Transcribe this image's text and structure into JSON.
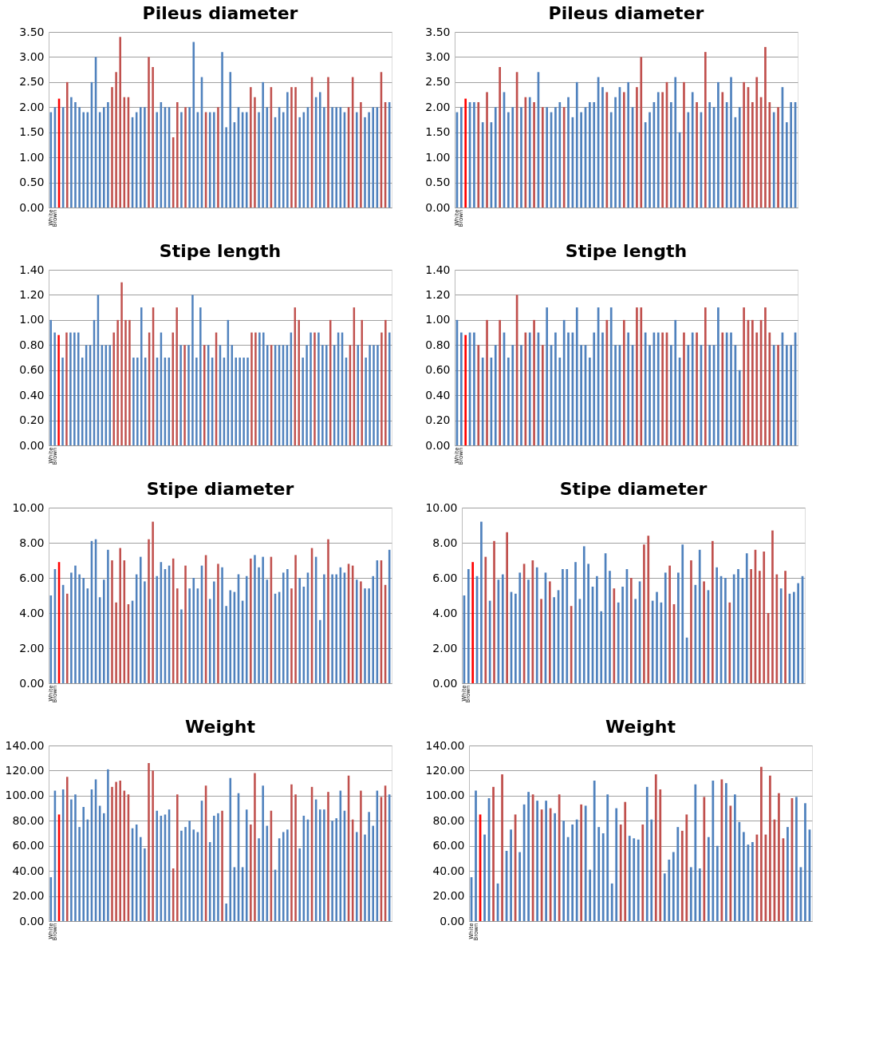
{
  "chart_data": [
    {
      "type": "bar",
      "title": "Pileus diameter",
      "grid": "y",
      "ylim": [
        0,
        3.5
      ],
      "yticks": [
        {
          "value": 0,
          "label": "0.00"
        },
        {
          "value": 0.5,
          "label": "0.50"
        },
        {
          "value": 1,
          "label": "1.00"
        },
        {
          "value": 1.5,
          "label": "1.50"
        },
        {
          "value": 2,
          "label": "2.00"
        },
        {
          "value": 2.5,
          "label": "2.50"
        },
        {
          "value": 3,
          "label": "3.00"
        },
        {
          "value": 3.5,
          "label": "3.50"
        }
      ],
      "categories": [
        "White",
        "Brown",
        null,
        null,
        null,
        null,
        null,
        null,
        null,
        null,
        null,
        null,
        null,
        null,
        null,
        null,
        null,
        null,
        null,
        null,
        null,
        null,
        null,
        null,
        null,
        null,
        null,
        null,
        null,
        null,
        null,
        null,
        null,
        null,
        null,
        null,
        null,
        null,
        null,
        null,
        null,
        null,
        null,
        null,
        null,
        null,
        null,
        null,
        null,
        null,
        null,
        null,
        null,
        null,
        null,
        null,
        null,
        null,
        null,
        null,
        null,
        null,
        null,
        null,
        null,
        null,
        null,
        null,
        null,
        null,
        null,
        null,
        null,
        null,
        null,
        null,
        null,
        null,
        null,
        null,
        null,
        null,
        null,
        null
      ],
      "values": [
        1.9,
        2.0,
        2.17,
        2.0,
        2.5,
        2.2,
        2.1,
        2.0,
        1.9,
        1.9,
        2.5,
        3.0,
        1.9,
        2.0,
        2.1,
        2.4,
        2.7,
        3.4,
        2.2,
        2.2,
        1.8,
        1.9,
        2.0,
        2.0,
        3.0,
        2.8,
        1.9,
        2.1,
        2.0,
        2.0,
        1.4,
        2.1,
        1.9,
        2.0,
        2.0,
        3.3,
        1.9,
        2.6,
        1.9,
        1.9,
        1.9,
        2.0,
        3.1,
        1.6,
        2.7,
        1.7,
        2.0,
        1.9,
        1.9,
        2.4,
        2.2,
        1.9,
        2.5,
        2.0,
        2.4,
        1.8,
        2.0,
        1.9,
        2.3,
        2.4,
        2.4,
        1.8,
        1.9,
        2.0,
        2.6,
        2.2,
        2.3,
        2.0,
        2.6,
        2.0,
        2.0,
        2.0,
        1.9,
        2.0,
        2.6,
        1.9,
        2.1,
        1.8,
        1.9,
        2.0,
        2.0,
        2.7,
        2.1,
        2.1
      ],
      "colors": [
        "#4f81bd",
        "#4f81bd",
        "#ff0000",
        "#4f81bd",
        "#c0504d",
        "#4f81bd",
        "#4f81bd",
        "#4f81bd",
        "#4f81bd",
        "#4f81bd",
        "#4f81bd",
        "#4f81bd",
        "#4f81bd",
        "#4f81bd",
        "#4f81bd",
        "#c0504d",
        "#c0504d",
        "#c0504d",
        "#c0504d",
        "#c0504d",
        "#4f81bd",
        "#4f81bd",
        "#4f81bd",
        "#4f81bd",
        "#c0504d",
        "#c0504d",
        "#4f81bd",
        "#4f81bd",
        "#4f81bd",
        "#4f81bd",
        "#c0504d",
        "#c0504d",
        "#4f81bd",
        "#c0504d",
        "#4f81bd",
        "#4f81bd",
        "#4f81bd",
        "#4f81bd",
        "#c0504d",
        "#4f81bd",
        "#4f81bd",
        "#c0504d",
        "#4f81bd",
        "#4f81bd",
        "#4f81bd",
        "#4f81bd",
        "#4f81bd",
        "#4f81bd",
        "#4f81bd",
        "#c0504d",
        "#c0504d",
        "#4f81bd",
        "#4f81bd",
        "#4f81bd",
        "#c0504d",
        "#4f81bd",
        "#4f81bd",
        "#4f81bd",
        "#4f81bd",
        "#c0504d",
        "#c0504d",
        "#4f81bd",
        "#4f81bd",
        "#4f81bd",
        "#c0504d",
        "#4f81bd",
        "#4f81bd",
        "#4f81bd",
        "#c0504d",
        "#4f81bd",
        "#4f81bd",
        "#4f81bd",
        "#4f81bd",
        "#c0504d",
        "#c0504d",
        "#4f81bd",
        "#c0504d",
        "#4f81bd",
        "#4f81bd",
        "#4f81bd",
        "#4f81bd",
        "#c0504d",
        "#c0504d",
        "#4f81bd"
      ]
    },
    {
      "type": "bar",
      "title": "Pileus diameter",
      "grid": "y",
      "ylim": [
        0,
        3.5
      ],
      "yticks": [
        {
          "value": 0,
          "label": "0.00"
        },
        {
          "value": 0.5,
          "label": "0.50"
        },
        {
          "value": 1,
          "label": "1.00"
        },
        {
          "value": 1.5,
          "label": "1.50"
        },
        {
          "value": 2,
          "label": "2.00"
        },
        {
          "value": 2.5,
          "label": "2.50"
        },
        {
          "value": 3,
          "label": "3.00"
        },
        {
          "value": 3.5,
          "label": "3.50"
        }
      ],
      "categories": [
        "White",
        "Brown",
        null,
        null,
        null,
        null,
        null,
        null,
        null,
        null,
        null,
        null,
        null,
        null,
        null,
        null,
        null,
        null,
        null,
        null,
        null,
        null,
        null,
        null,
        null,
        null,
        null,
        null,
        null,
        null,
        null,
        null,
        null,
        null,
        null,
        null,
        null,
        null,
        null,
        null,
        null,
        null,
        null,
        null,
        null,
        null,
        null,
        null,
        null,
        null,
        null,
        null,
        null,
        null,
        null,
        null,
        null,
        null,
        null,
        null,
        null,
        null,
        null,
        null,
        null,
        null,
        null,
        null,
        null,
        null,
        null,
        null,
        null,
        null,
        null,
        null,
        null,
        null,
        null,
        null
      ],
      "values": [
        1.9,
        2.0,
        2.17,
        2.1,
        2.1,
        2.1,
        1.7,
        2.3,
        1.7,
        2.0,
        2.8,
        2.3,
        1.9,
        2.0,
        2.7,
        2.0,
        2.2,
        2.2,
        2.1,
        2.7,
        2.0,
        2.0,
        1.9,
        2.0,
        2.1,
        2.0,
        2.2,
        1.8,
        2.5,
        1.9,
        2.0,
        2.1,
        2.1,
        2.6,
        2.4,
        2.3,
        1.9,
        2.2,
        2.4,
        2.3,
        2.5,
        2.0,
        2.4,
        3.0,
        1.7,
        1.9,
        2.1,
        2.3,
        2.3,
        2.5,
        2.1,
        2.6,
        1.5,
        2.5,
        1.9,
        2.3,
        2.1,
        1.9,
        3.1,
        2.1,
        2.0,
        2.5,
        2.3,
        2.1,
        2.6,
        1.8,
        2.0,
        2.5,
        2.4,
        2.1,
        2.6,
        2.2,
        3.2,
        2.1,
        1.9,
        2.0,
        2.4,
        1.7,
        2.1,
        2.1
      ],
      "colors": [
        "#4f81bd",
        "#4f81bd",
        "#ff0000",
        "#4f81bd",
        "#4f81bd",
        "#c0504d",
        "#4f81bd",
        "#c0504d",
        "#4f81bd",
        "#4f81bd",
        "#c0504d",
        "#4f81bd",
        "#4f81bd",
        "#4f81bd",
        "#c0504d",
        "#4f81bd",
        "#c0504d",
        "#4f81bd",
        "#c0504d",
        "#4f81bd",
        "#c0504d",
        "#4f81bd",
        "#4f81bd",
        "#4f81bd",
        "#4f81bd",
        "#c0504d",
        "#4f81bd",
        "#4f81bd",
        "#4f81bd",
        "#4f81bd",
        "#4f81bd",
        "#4f81bd",
        "#4f81bd",
        "#4f81bd",
        "#4f81bd",
        "#c0504d",
        "#4f81bd",
        "#4f81bd",
        "#4f81bd",
        "#c0504d",
        "#4f81bd",
        "#4f81bd",
        "#c0504d",
        "#c0504d",
        "#4f81bd",
        "#4f81bd",
        "#4f81bd",
        "#4f81bd",
        "#c0504d",
        "#c0504d",
        "#4f81bd",
        "#4f81bd",
        "#4f81bd",
        "#c0504d",
        "#4f81bd",
        "#4f81bd",
        "#c0504d",
        "#4f81bd",
        "#c0504d",
        "#4f81bd",
        "#4f81bd",
        "#4f81bd",
        "#c0504d",
        "#4f81bd",
        "#4f81bd",
        "#4f81bd",
        "#4f81bd",
        "#c0504d",
        "#c0504d",
        "#c0504d",
        "#c0504d",
        "#c0504d",
        "#c0504d",
        "#c0504d",
        "#4f81bd",
        "#c0504d",
        "#4f81bd",
        "#4f81bd",
        "#4f81bd",
        "#4f81bd"
      ]
    },
    {
      "type": "bar",
      "title": "Stipe length",
      "grid": "y",
      "ylim": [
        0,
        1.4
      ],
      "yticks": [
        {
          "value": 0,
          "label": "0.00"
        },
        {
          "value": 0.2,
          "label": "0.20"
        },
        {
          "value": 0.4,
          "label": "0.40"
        },
        {
          "value": 0.6,
          "label": "0.60"
        },
        {
          "value": 0.8,
          "label": "0.80"
        },
        {
          "value": 1,
          "label": "1.00"
        },
        {
          "value": 1.2,
          "label": "1.20"
        },
        {
          "value": 1.4,
          "label": "1.40"
        }
      ],
      "categories": [
        "White",
        "Brown",
        null,
        null,
        null,
        null,
        null,
        null,
        null,
        null,
        null,
        null,
        null,
        null,
        null,
        null,
        null,
        null,
        null,
        null,
        null,
        null,
        null,
        null,
        null,
        null,
        null,
        null,
        null,
        null,
        null,
        null,
        null,
        null,
        null,
        null,
        null,
        null,
        null,
        null,
        null,
        null,
        null,
        null,
        null,
        null,
        null,
        null,
        null,
        null,
        null,
        null,
        null,
        null,
        null,
        null,
        null,
        null,
        null,
        null,
        null,
        null,
        null,
        null,
        null,
        null,
        null,
        null,
        null,
        null,
        null,
        null,
        null,
        null,
        null,
        null,
        null,
        null,
        null,
        null,
        null,
        null,
        null,
        null,
        null,
        null,
        null
      ],
      "values": [
        1.0,
        0.9,
        0.88,
        0.7,
        0.9,
        0.9,
        0.9,
        0.9,
        0.7,
        0.8,
        0.8,
        1.0,
        1.2,
        0.8,
        0.8,
        0.8,
        0.9,
        1.0,
        1.3,
        1.0,
        1.0,
        0.7,
        0.7,
        1.1,
        0.7,
        0.9,
        1.1,
        0.7,
        0.9,
        0.7,
        0.7,
        0.9,
        1.1,
        0.8,
        0.8,
        0.8,
        1.2,
        0.7,
        1.1,
        0.8,
        0.8,
        0.7,
        0.9,
        0.8,
        0.7,
        1.0,
        0.8,
        0.7,
        0.7,
        0.7,
        0.7,
        0.9,
        0.9,
        0.9,
        0.9,
        0.8,
        0.8,
        0.8,
        0.8,
        0.8,
        0.8,
        0.9,
        1.1,
        1.0,
        0.7,
        0.8,
        0.9,
        0.9,
        0.9,
        0.8,
        0.8,
        1.0,
        0.8,
        0.9,
        0.9,
        0.7,
        0.8,
        1.1,
        0.8,
        1.0,
        0.7,
        0.8,
        0.8,
        0.8,
        0.9,
        1.0,
        0.9
      ],
      "colors": [
        "#4f81bd",
        "#4f81bd",
        "#ff0000",
        "#4f81bd",
        "#c0504d",
        "#4f81bd",
        "#4f81bd",
        "#4f81bd",
        "#4f81bd",
        "#4f81bd",
        "#4f81bd",
        "#4f81bd",
        "#4f81bd",
        "#4f81bd",
        "#4f81bd",
        "#4f81bd",
        "#c0504d",
        "#c0504d",
        "#c0504d",
        "#c0504d",
        "#c0504d",
        "#4f81bd",
        "#4f81bd",
        "#4f81bd",
        "#4f81bd",
        "#c0504d",
        "#c0504d",
        "#4f81bd",
        "#4f81bd",
        "#4f81bd",
        "#4f81bd",
        "#c0504d",
        "#c0504d",
        "#4f81bd",
        "#c0504d",
        "#4f81bd",
        "#4f81bd",
        "#4f81bd",
        "#4f81bd",
        "#c0504d",
        "#4f81bd",
        "#4f81bd",
        "#c0504d",
        "#4f81bd",
        "#4f81bd",
        "#4f81bd",
        "#4f81bd",
        "#4f81bd",
        "#4f81bd",
        "#4f81bd",
        "#4f81bd",
        "#c0504d",
        "#c0504d",
        "#4f81bd",
        "#4f81bd",
        "#4f81bd",
        "#c0504d",
        "#4f81bd",
        "#4f81bd",
        "#4f81bd",
        "#4f81bd",
        "#4f81bd",
        "#c0504d",
        "#c0504d",
        "#4f81bd",
        "#4f81bd",
        "#4f81bd",
        "#c0504d",
        "#4f81bd",
        "#4f81bd",
        "#4f81bd",
        "#c0504d",
        "#4f81bd",
        "#4f81bd",
        "#4f81bd",
        "#4f81bd",
        "#c0504d",
        "#c0504d",
        "#4f81bd",
        "#c0504d",
        "#4f81bd",
        "#4f81bd",
        "#4f81bd",
        "#4f81bd",
        "#c0504d",
        "#c0504d",
        "#4f81bd"
      ]
    },
    {
      "type": "bar",
      "title": "Stipe length",
      "grid": "y",
      "ylim": [
        0,
        1.4
      ],
      "yticks": [
        {
          "value": 0,
          "label": "0.00"
        },
        {
          "value": 0.2,
          "label": "0.20"
        },
        {
          "value": 0.4,
          "label": "0.40"
        },
        {
          "value": 0.6,
          "label": "0.60"
        },
        {
          "value": 0.8,
          "label": "0.80"
        },
        {
          "value": 1,
          "label": "1.00"
        },
        {
          "value": 1.2,
          "label": "1.20"
        },
        {
          "value": 1.4,
          "label": "1.40"
        }
      ],
      "categories": [
        "White",
        "Brown",
        null,
        null,
        null,
        null,
        null,
        null,
        null,
        null,
        null,
        null,
        null,
        null,
        null,
        null,
        null,
        null,
        null,
        null,
        null,
        null,
        null,
        null,
        null,
        null,
        null,
        null,
        null,
        null,
        null,
        null,
        null,
        null,
        null,
        null,
        null,
        null,
        null,
        null,
        null,
        null,
        null,
        null,
        null,
        null,
        null,
        null,
        null,
        null,
        null,
        null,
        null,
        null,
        null,
        null,
        null,
        null,
        null,
        null,
        null,
        null,
        null,
        null,
        null,
        null,
        null,
        null,
        null,
        null,
        null,
        null,
        null,
        null,
        null,
        null,
        null,
        null,
        null,
        null
      ],
      "values": [
        1.0,
        0.9,
        0.88,
        0.9,
        0.9,
        0.8,
        0.7,
        1.0,
        0.7,
        0.8,
        1.0,
        0.9,
        0.7,
        0.8,
        1.2,
        0.8,
        0.9,
        0.9,
        1.0,
        0.9,
        0.8,
        1.1,
        0.8,
        0.9,
        0.7,
        1.0,
        0.9,
        0.9,
        1.1,
        0.8,
        0.8,
        0.7,
        0.9,
        1.1,
        0.9,
        1.0,
        1.1,
        0.8,
        0.8,
        1.0,
        0.9,
        0.8,
        1.1,
        1.1,
        0.9,
        0.8,
        0.9,
        0.9,
        0.9,
        0.9,
        0.8,
        1.0,
        0.7,
        0.9,
        0.8,
        0.9,
        0.9,
        0.8,
        1.1,
        0.8,
        0.8,
        1.1,
        0.9,
        0.9,
        0.9,
        0.8,
        0.6,
        1.1,
        1.0,
        1.0,
        0.9,
        1.0,
        1.1,
        0.9,
        0.8,
        0.8,
        0.9,
        0.8,
        0.8,
        0.9
      ],
      "colors": [
        "#4f81bd",
        "#4f81bd",
        "#ff0000",
        "#4f81bd",
        "#4f81bd",
        "#c0504d",
        "#4f81bd",
        "#c0504d",
        "#4f81bd",
        "#4f81bd",
        "#c0504d",
        "#4f81bd",
        "#4f81bd",
        "#4f81bd",
        "#c0504d",
        "#4f81bd",
        "#c0504d",
        "#4f81bd",
        "#c0504d",
        "#4f81bd",
        "#c0504d",
        "#4f81bd",
        "#4f81bd",
        "#4f81bd",
        "#4f81bd",
        "#4f81bd",
        "#4f81bd",
        "#4f81bd",
        "#4f81bd",
        "#4f81bd",
        "#4f81bd",
        "#4f81bd",
        "#4f81bd",
        "#4f81bd",
        "#4f81bd",
        "#c0504d",
        "#4f81bd",
        "#4f81bd",
        "#4f81bd",
        "#c0504d",
        "#4f81bd",
        "#4f81bd",
        "#c0504d",
        "#c0504d",
        "#4f81bd",
        "#4f81bd",
        "#4f81bd",
        "#4f81bd",
        "#c0504d",
        "#c0504d",
        "#4f81bd",
        "#4f81bd",
        "#4f81bd",
        "#c0504d",
        "#4f81bd",
        "#4f81bd",
        "#c0504d",
        "#4f81bd",
        "#c0504d",
        "#4f81bd",
        "#4f81bd",
        "#4f81bd",
        "#c0504d",
        "#4f81bd",
        "#4f81bd",
        "#4f81bd",
        "#4f81bd",
        "#c0504d",
        "#c0504d",
        "#c0504d",
        "#c0504d",
        "#c0504d",
        "#c0504d",
        "#c0504d",
        "#4f81bd",
        "#c0504d",
        "#4f81bd",
        "#4f81bd",
        "#4f81bd",
        "#4f81bd"
      ]
    },
    {
      "type": "bar",
      "title": "Stipe diameter",
      "grid": "y",
      "ylim": [
        0,
        10
      ],
      "yticks": [
        {
          "value": 0,
          "label": "0.00"
        },
        {
          "value": 2,
          "label": "2.00"
        },
        {
          "value": 4,
          "label": "4.00"
        },
        {
          "value": 6,
          "label": "6.00"
        },
        {
          "value": 8,
          "label": "8.00"
        },
        {
          "value": 10,
          "label": "10.00"
        }
      ],
      "categories": [
        "White",
        "Brown",
        null,
        null,
        null,
        null,
        null,
        null,
        null,
        null,
        null,
        null,
        null,
        null,
        null,
        null,
        null,
        null,
        null,
        null,
        null,
        null,
        null,
        null,
        null,
        null,
        null,
        null,
        null,
        null,
        null,
        null,
        null,
        null,
        null,
        null,
        null,
        null,
        null,
        null,
        null,
        null,
        null,
        null,
        null,
        null,
        null,
        null,
        null,
        null,
        null,
        null,
        null,
        null,
        null,
        null,
        null,
        null,
        null,
        null,
        null,
        null,
        null,
        null,
        null,
        null,
        null,
        null,
        null,
        null,
        null,
        null,
        null,
        null,
        null,
        null,
        null,
        null,
        null,
        null,
        null,
        null,
        null,
        null
      ],
      "values": [
        5.0,
        6.5,
        6.9,
        5.6,
        5.1,
        6.3,
        6.7,
        6.2,
        6.0,
        5.4,
        8.1,
        8.2,
        4.9,
        5.9,
        7.6,
        7.0,
        4.6,
        7.7,
        7.0,
        4.5,
        4.7,
        6.2,
        7.2,
        5.8,
        8.2,
        9.2,
        6.1,
        6.9,
        6.5,
        6.7,
        7.1,
        5.4,
        4.2,
        6.7,
        5.4,
        6.0,
        5.4,
        6.7,
        7.3,
        4.8,
        5.8,
        6.8,
        6.6,
        4.4,
        5.3,
        5.2,
        6.2,
        4.7,
        6.1,
        7.1,
        7.3,
        6.6,
        7.2,
        5.9,
        7.2,
        5.1,
        5.2,
        6.3,
        6.5,
        5.4,
        7.3,
        6.0,
        5.5,
        6.3,
        7.7,
        7.2,
        3.6,
        6.2,
        8.2,
        6.2,
        6.2,
        6.6,
        6.3,
        6.8,
        6.7,
        5.9,
        5.8,
        5.4,
        5.4,
        6.1,
        7.0,
        7.0,
        5.6,
        7.6
      ],
      "colors": [
        "#4f81bd",
        "#4f81bd",
        "#ff0000",
        "#4f81bd",
        "#c0504d",
        "#4f81bd",
        "#4f81bd",
        "#4f81bd",
        "#4f81bd",
        "#4f81bd",
        "#4f81bd",
        "#4f81bd",
        "#4f81bd",
        "#4f81bd",
        "#4f81bd",
        "#c0504d",
        "#c0504d",
        "#c0504d",
        "#c0504d",
        "#c0504d",
        "#4f81bd",
        "#4f81bd",
        "#4f81bd",
        "#4f81bd",
        "#c0504d",
        "#c0504d",
        "#4f81bd",
        "#4f81bd",
        "#4f81bd",
        "#4f81bd",
        "#c0504d",
        "#c0504d",
        "#4f81bd",
        "#c0504d",
        "#4f81bd",
        "#4f81bd",
        "#4f81bd",
        "#4f81bd",
        "#c0504d",
        "#4f81bd",
        "#4f81bd",
        "#c0504d",
        "#4f81bd",
        "#4f81bd",
        "#4f81bd",
        "#4f81bd",
        "#4f81bd",
        "#4f81bd",
        "#4f81bd",
        "#c0504d",
        "#4f81bd",
        "#4f81bd",
        "#4f81bd",
        "#4f81bd",
        "#c0504d",
        "#4f81bd",
        "#4f81bd",
        "#4f81bd",
        "#4f81bd",
        "#c0504d",
        "#c0504d",
        "#4f81bd",
        "#4f81bd",
        "#4f81bd",
        "#c0504d",
        "#4f81bd",
        "#4f81bd",
        "#4f81bd",
        "#c0504d",
        "#4f81bd",
        "#4f81bd",
        "#4f81bd",
        "#4f81bd",
        "#c0504d",
        "#c0504d",
        "#4f81bd",
        "#c0504d",
        "#4f81bd",
        "#4f81bd",
        "#4f81bd",
        "#4f81bd",
        "#c0504d",
        "#c0504d",
        "#4f81bd"
      ]
    },
    {
      "type": "bar",
      "title": "Stipe diameter",
      "grid": "y",
      "ylim": [
        0,
        10
      ],
      "yticks": [
        {
          "value": 0,
          "label": "0.00"
        },
        {
          "value": 2,
          "label": "2.00"
        },
        {
          "value": 4,
          "label": "4.00"
        },
        {
          "value": 6,
          "label": "6.00"
        },
        {
          "value": 8,
          "label": "8.00"
        },
        {
          "value": 10,
          "label": "10.00"
        }
      ],
      "categories": [
        "White",
        "Brown",
        null,
        null,
        null,
        null,
        null,
        null,
        null,
        null,
        null,
        null,
        null,
        null,
        null,
        null,
        null,
        null,
        null,
        null,
        null,
        null,
        null,
        null,
        null,
        null,
        null,
        null,
        null,
        null,
        null,
        null,
        null,
        null,
        null,
        null,
        null,
        null,
        null,
        null,
        null,
        null,
        null,
        null,
        null,
        null,
        null,
        null,
        null,
        null,
        null,
        null,
        null,
        null,
        null,
        null,
        null,
        null,
        null,
        null,
        null,
        null,
        null,
        null,
        null,
        null,
        null,
        null,
        null,
        null,
        null,
        null,
        null,
        null,
        null,
        null,
        null,
        null,
        null,
        null
      ],
      "values": [
        5.0,
        6.5,
        6.9,
        6.1,
        9.2,
        7.2,
        4.7,
        8.1,
        5.9,
        6.2,
        8.6,
        5.2,
        5.1,
        6.3,
        6.8,
        5.9,
        7.0,
        6.6,
        4.8,
        6.3,
        5.8,
        4.9,
        5.3,
        6.5,
        6.5,
        4.4,
        6.9,
        4.8,
        7.8,
        6.8,
        5.5,
        6.1,
        4.1,
        7.4,
        6.4,
        5.4,
        4.6,
        5.5,
        6.5,
        6.0,
        4.8,
        5.8,
        7.9,
        8.4,
        4.7,
        5.2,
        4.6,
        6.3,
        6.7,
        4.5,
        6.3,
        7.9,
        2.6,
        7.0,
        5.6,
        7.6,
        5.8,
        5.3,
        8.1,
        6.6,
        6.1,
        6.0,
        4.6,
        6.2,
        6.5,
        6.0,
        7.4,
        6.5,
        7.6,
        6.4,
        7.5,
        4.0,
        8.7,
        6.2,
        5.4,
        6.4,
        5.1,
        5.2,
        5.7,
        6.1
      ],
      "colors": [
        "#4f81bd",
        "#4f81bd",
        "#ff0000",
        "#4f81bd",
        "#4f81bd",
        "#c0504d",
        "#4f81bd",
        "#c0504d",
        "#4f81bd",
        "#4f81bd",
        "#c0504d",
        "#4f81bd",
        "#4f81bd",
        "#4f81bd",
        "#c0504d",
        "#4f81bd",
        "#c0504d",
        "#4f81bd",
        "#c0504d",
        "#4f81bd",
        "#c0504d",
        "#4f81bd",
        "#4f81bd",
        "#4f81bd",
        "#4f81bd",
        "#c0504d",
        "#4f81bd",
        "#4f81bd",
        "#4f81bd",
        "#4f81bd",
        "#4f81bd",
        "#4f81bd",
        "#4f81bd",
        "#4f81bd",
        "#4f81bd",
        "#c0504d",
        "#4f81bd",
        "#4f81bd",
        "#4f81bd",
        "#c0504d",
        "#4f81bd",
        "#4f81bd",
        "#c0504d",
        "#c0504d",
        "#4f81bd",
        "#4f81bd",
        "#4f81bd",
        "#4f81bd",
        "#c0504d",
        "#c0504d",
        "#4f81bd",
        "#4f81bd",
        "#4f81bd",
        "#c0504d",
        "#4f81bd",
        "#4f81bd",
        "#c0504d",
        "#4f81bd",
        "#c0504d",
        "#4f81bd",
        "#4f81bd",
        "#4f81bd",
        "#c0504d",
        "#4f81bd",
        "#4f81bd",
        "#4f81bd",
        "#4f81bd",
        "#c0504d",
        "#c0504d",
        "#c0504d",
        "#c0504d",
        "#c0504d",
        "#c0504d",
        "#c0504d",
        "#4f81bd",
        "#c0504d",
        "#4f81bd",
        "#4f81bd",
        "#4f81bd",
        "#4f81bd"
      ]
    },
    {
      "type": "bar",
      "title": "Weight",
      "grid": "y",
      "ylim": [
        0,
        140
      ],
      "yticks": [
        {
          "value": 0,
          "label": "0.00"
        },
        {
          "value": 20,
          "label": "20.00"
        },
        {
          "value": 40,
          "label": "40.00"
        },
        {
          "value": 60,
          "label": "60.00"
        },
        {
          "value": 80,
          "label": "80.00"
        },
        {
          "value": 100,
          "label": "100.00"
        },
        {
          "value": 120,
          "label": "120.00"
        },
        {
          "value": 140,
          "label": "140.00"
        }
      ],
      "categories": [
        "White",
        "Brown",
        null,
        null,
        null,
        null,
        null,
        null,
        null,
        null,
        null,
        null,
        null,
        null,
        null,
        null,
        null,
        null,
        null,
        null,
        null,
        null,
        null,
        null,
        null,
        null,
        null,
        null,
        null,
        null,
        null,
        null,
        null,
        null,
        null,
        null,
        null,
        null,
        null,
        null,
        null,
        null,
        null,
        null,
        null,
        null,
        null,
        null,
        null,
        null,
        null,
        null,
        null,
        null,
        null,
        null,
        null,
        null,
        null,
        null,
        null,
        null,
        null,
        null,
        null,
        null,
        null,
        null,
        null,
        null,
        null,
        null,
        null,
        null,
        null,
        null,
        null,
        null,
        null,
        null,
        null,
        null,
        null,
        null
      ],
      "values": [
        35,
        104,
        85,
        105,
        115,
        97,
        101,
        75,
        91,
        81,
        105,
        113,
        92,
        86,
        121,
        107,
        111,
        112,
        104,
        101,
        74,
        77,
        67,
        58,
        126,
        120,
        88,
        84,
        85,
        89,
        42,
        101,
        72,
        75,
        80,
        73,
        71,
        96,
        108,
        63,
        84,
        86,
        88,
        14,
        114,
        43,
        102,
        43,
        89,
        77,
        118,
        66,
        108,
        76,
        88,
        41,
        66,
        71,
        73,
        109,
        101,
        58,
        84,
        81,
        107,
        97,
        89,
        89,
        103,
        80,
        82,
        104,
        88,
        116,
        81,
        71,
        104,
        69,
        87,
        76,
        104,
        99,
        108,
        101
      ],
      "colors": [
        "#4f81bd",
        "#4f81bd",
        "#ff0000",
        "#4f81bd",
        "#c0504d",
        "#4f81bd",
        "#4f81bd",
        "#4f81bd",
        "#4f81bd",
        "#4f81bd",
        "#4f81bd",
        "#4f81bd",
        "#4f81bd",
        "#4f81bd",
        "#4f81bd",
        "#c0504d",
        "#c0504d",
        "#c0504d",
        "#c0504d",
        "#c0504d",
        "#4f81bd",
        "#4f81bd",
        "#4f81bd",
        "#4f81bd",
        "#c0504d",
        "#c0504d",
        "#4f81bd",
        "#4f81bd",
        "#4f81bd",
        "#4f81bd",
        "#c0504d",
        "#c0504d",
        "#4f81bd",
        "#4f81bd",
        "#4f81bd",
        "#4f81bd",
        "#4f81bd",
        "#4f81bd",
        "#c0504d",
        "#4f81bd",
        "#4f81bd",
        "#4f81bd",
        "#c0504d",
        "#4f81bd",
        "#4f81bd",
        "#4f81bd",
        "#4f81bd",
        "#4f81bd",
        "#4f81bd",
        "#c0504d",
        "#c0504d",
        "#4f81bd",
        "#4f81bd",
        "#4f81bd",
        "#c0504d",
        "#4f81bd",
        "#4f81bd",
        "#4f81bd",
        "#4f81bd",
        "#c0504d",
        "#c0504d",
        "#4f81bd",
        "#4f81bd",
        "#4f81bd",
        "#c0504d",
        "#4f81bd",
        "#4f81bd",
        "#4f81bd",
        "#c0504d",
        "#4f81bd",
        "#4f81bd",
        "#4f81bd",
        "#4f81bd",
        "#c0504d",
        "#c0504d",
        "#4f81bd",
        "#c0504d",
        "#4f81bd",
        "#4f81bd",
        "#4f81bd",
        "#4f81bd",
        "#c0504d",
        "#c0504d",
        "#4f81bd"
      ]
    },
    {
      "type": "bar",
      "title": "Weight",
      "grid": "y",
      "ylim": [
        0,
        140
      ],
      "yticks": [
        {
          "value": 0,
          "label": "0.00"
        },
        {
          "value": 20,
          "label": "20.00"
        },
        {
          "value": 40,
          "label": "40.00"
        },
        {
          "value": 60,
          "label": "60.00"
        },
        {
          "value": 80,
          "label": "80.00"
        },
        {
          "value": 100,
          "label": "100.00"
        },
        {
          "value": 120,
          "label": "120.00"
        },
        {
          "value": 140,
          "label": "140.00"
        }
      ],
      "categories": [
        "White",
        "Brown",
        null,
        null,
        null,
        null,
        null,
        null,
        null,
        null,
        null,
        null,
        null,
        null,
        null,
        null,
        null,
        null,
        null,
        null,
        null,
        null,
        null,
        null,
        null,
        null,
        null,
        null,
        null,
        null,
        null,
        null,
        null,
        null,
        null,
        null,
        null,
        null,
        null,
        null,
        null,
        null,
        null,
        null,
        null,
        null,
        null,
        null,
        null,
        null,
        null,
        null,
        null,
        null,
        null,
        null,
        null,
        null,
        null,
        null,
        null,
        null,
        null,
        null,
        null,
        null,
        null,
        null,
        null,
        null,
        null,
        null,
        null,
        null,
        null,
        null,
        null,
        null
      ],
      "values": [
        35,
        104,
        85,
        69,
        98,
        107,
        30,
        117,
        56,
        73,
        85,
        55,
        93,
        103,
        101,
        96,
        89,
        96,
        90,
        86,
        101,
        80,
        67,
        77,
        81,
        93,
        92,
        41,
        112,
        75,
        70,
        101,
        30,
        90,
        77,
        95,
        68,
        66,
        65,
        77,
        107,
        81,
        117,
        105,
        38,
        49,
        55,
        75,
        72,
        85,
        43,
        109,
        42,
        99,
        67,
        112,
        60,
        113,
        110,
        92,
        101,
        79,
        71,
        61,
        63,
        69,
        123,
        69,
        116,
        81,
        102,
        66,
        75,
        98,
        99,
        43,
        94,
        73
      ],
      "colors": [
        "#4f81bd",
        "#4f81bd",
        "#ff0000",
        "#4f81bd",
        "#4f81bd",
        "#c0504d",
        "#4f81bd",
        "#c0504d",
        "#4f81bd",
        "#4f81bd",
        "#c0504d",
        "#4f81bd",
        "#4f81bd",
        "#4f81bd",
        "#c0504d",
        "#4f81bd",
        "#c0504d",
        "#4f81bd",
        "#c0504d",
        "#4f81bd",
        "#c0504d",
        "#4f81bd",
        "#4f81bd",
        "#4f81bd",
        "#4f81bd",
        "#c0504d",
        "#4f81bd",
        "#4f81bd",
        "#4f81bd",
        "#4f81bd",
        "#4f81bd",
        "#4f81bd",
        "#4f81bd",
        "#4f81bd",
        "#c0504d",
        "#c0504d",
        "#4f81bd",
        "#4f81bd",
        "#4f81bd",
        "#c0504d",
        "#4f81bd",
        "#4f81bd",
        "#c0504d",
        "#c0504d",
        "#4f81bd",
        "#4f81bd",
        "#4f81bd",
        "#4f81bd",
        "#c0504d",
        "#c0504d",
        "#4f81bd",
        "#4f81bd",
        "#4f81bd",
        "#c0504d",
        "#4f81bd",
        "#4f81bd",
        "#4f81bd",
        "#c0504d",
        "#4f81bd",
        "#c0504d",
        "#4f81bd",
        "#4f81bd",
        "#4f81bd",
        "#4f81bd",
        "#4f81bd",
        "#c0504d",
        "#c0504d",
        "#c0504d",
        "#c0504d",
        "#c0504d",
        "#c0504d",
        "#c0504d",
        "#4f81bd",
        "#c0504d",
        "#4f81bd",
        "#4f81bd",
        "#4f81bd",
        "#4f81bd"
      ]
    }
  ]
}
